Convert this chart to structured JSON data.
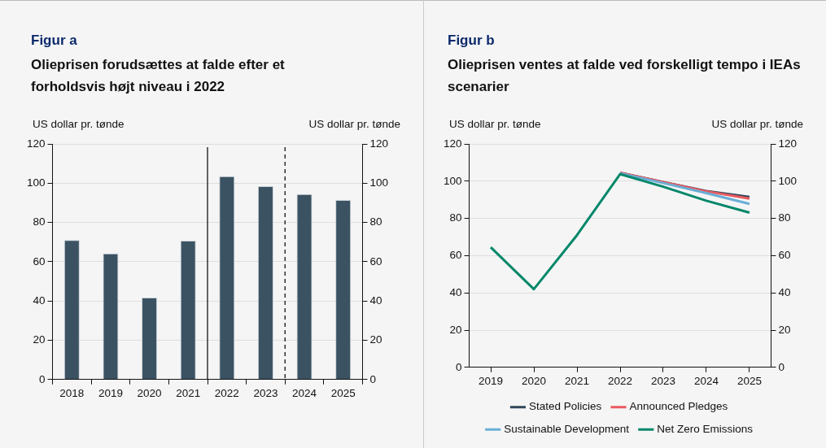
{
  "chart_data": [
    {
      "type": "bar",
      "title": "Figur a",
      "subtitle": "Olieprisen forudsættes at falde efter et forholdsvis højt niveau i 2022",
      "ylabel": "US dollar pr. tønde",
      "y2label": "US dollar pr. tønde",
      "x": [
        2018,
        2019,
        2020,
        2021,
        2022,
        2023,
        2024,
        2025
      ],
      "xlim": [
        2017.5,
        2025.5
      ],
      "xticks": [
        2018,
        2019,
        2020,
        2021,
        2022,
        2023,
        2024,
        2025
      ],
      "values": [
        71,
        64.2,
        41.7,
        70.7,
        103.5,
        98.5,
        94.4,
        91.4
      ],
      "color": "#3b5262",
      "ylim": [
        0,
        120
      ],
      "yticks": [
        0,
        20,
        40,
        60,
        80,
        100,
        120
      ],
      "y2lim": [
        0,
        120
      ],
      "y2ticks": [
        0,
        20,
        40,
        60,
        80,
        100,
        120
      ],
      "grid": "y",
      "legend": false,
      "ref_lines": [
        {
          "axis": "x",
          "value": 2021.5,
          "color": "#000000",
          "line_style": "solid"
        },
        {
          "axis": "x",
          "value": 2023.5,
          "color": "#000000",
          "line_style": "dashed"
        }
      ]
    },
    {
      "type": "line",
      "title": "Figur b",
      "subtitle": "Olieprisen ventes at falde ved forskelligt tempo i IEAs scenarier",
      "ylabel": "US dollar pr. tønde",
      "y2label": "US dollar pr. tønde",
      "categories": [
        "2019",
        "2020",
        "2021",
        "2022",
        "2023",
        "2024",
        "2025"
      ],
      "ylim": [
        0,
        120
      ],
      "yticks": [
        0,
        20,
        40,
        60,
        80,
        100,
        120
      ],
      "y2lim": [
        0,
        120
      ],
      "y2ticks": [
        0,
        20,
        40,
        60,
        80,
        100,
        120
      ],
      "grid": "y",
      "legend": "bottom",
      "marker": "none",
      "line_style": "solid",
      "series": [
        {
          "name": "Stated Policies",
          "color": "#2e4759",
          "values": [
            null,
            null,
            null,
            104.5,
            99.5,
            94.7,
            91.5
          ]
        },
        {
          "name": "Announced Pledges",
          "color": "#ea5a61",
          "values": [
            null,
            null,
            null,
            104.5,
            99.5,
            94.5,
            90.6
          ]
        },
        {
          "name": "Sustainable Development",
          "color": "#6aaed6",
          "values": [
            null,
            null,
            null,
            104.2,
            99,
            93.6,
            87.8
          ]
        },
        {
          "name": "Net Zero Emissions",
          "color": "#00876a",
          "values": [
            64.5,
            42,
            71,
            103.8,
            97,
            89.5,
            83.1
          ]
        }
      ]
    }
  ]
}
